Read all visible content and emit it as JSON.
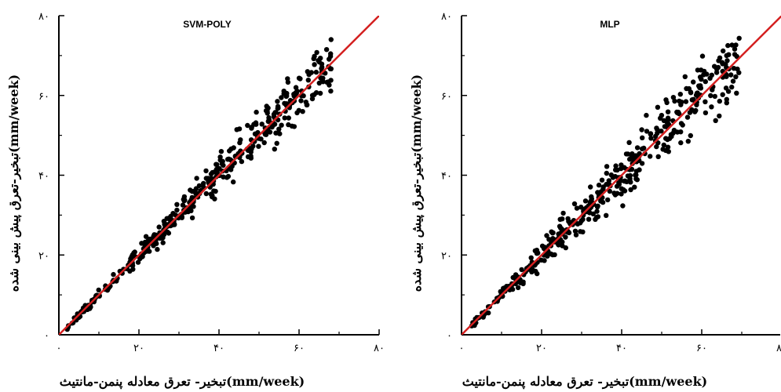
{
  "chart_data": [
    {
      "type": "scatter",
      "title": "SVM-POLY",
      "xlabel": "تبخیر- تعرق معادله پنمن-مانتیث(mm/week)",
      "ylabel": "تبخیر-تعرق پیش بینی شده(mm/week)",
      "xlim": [
        0,
        80
      ],
      "ylim": [
        0,
        80
      ],
      "xticks": [
        "۰",
        "۲۰",
        "۴۰",
        "۶۰",
        "۸۰"
      ],
      "yticks": [
        "۰",
        "۲۰",
        "۴۰",
        "۶۰",
        "۸۰"
      ],
      "grid": false,
      "marker_color": "#000000",
      "reference_line": {
        "name": "1:1",
        "x": [
          0,
          80
        ],
        "y": [
          0,
          80
        ],
        "color": "#d42020"
      },
      "sample_count": 420,
      "noise_scale": 0.11,
      "x_max": 68
    },
    {
      "type": "scatter",
      "title": "MLP",
      "xlabel": "تبخیر- تعرق معادله پنمن-مانتیث(mm/week)",
      "ylabel": "تبخیر-تعرق پیش بینی شده(mm/week)",
      "xlim": [
        0,
        80
      ],
      "ylim": [
        0,
        80
      ],
      "xticks": [
        "۰",
        "۲۰",
        "۴۰",
        "۶۰",
        "۸۰"
      ],
      "yticks": [
        "۰",
        "۲۰",
        "۴۰",
        "۶۰",
        "۸۰"
      ],
      "grid": false,
      "marker_color": "#000000",
      "reference_line": {
        "name": "1:1",
        "x": [
          0,
          80
        ],
        "y": [
          0,
          80
        ],
        "color": "#d42020"
      },
      "sample_count": 420,
      "noise_scale": 0.15,
      "x_max": 70
    }
  ]
}
